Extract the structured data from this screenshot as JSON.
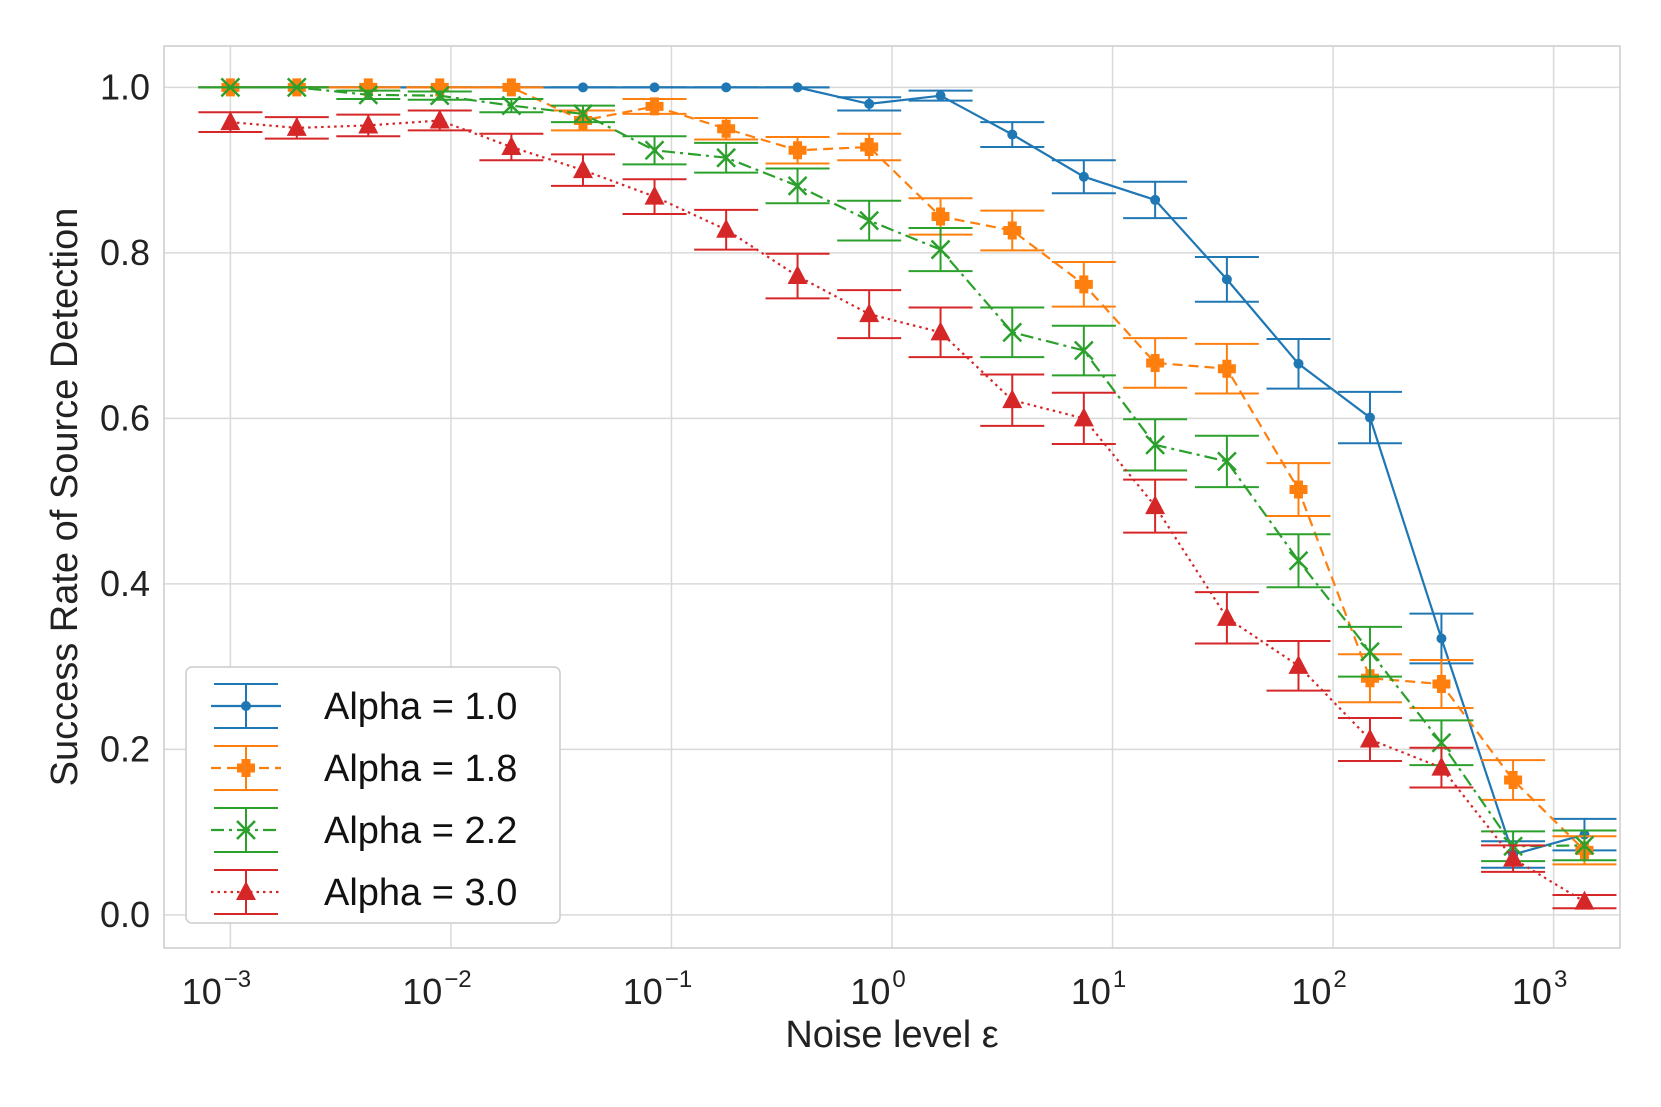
{
  "chart_data": {
    "type": "line",
    "title": "",
    "xlabel": "Noise level ε",
    "ylabel": "Success Rate of Source Detection",
    "xscale": "log",
    "xlim": [
      0.0005,
      2000
    ],
    "ylim": [
      -0.04,
      1.05
    ],
    "grid": true,
    "legend_position": "lower-left",
    "x_ticks": [
      {
        "value": 0.001,
        "base": "10",
        "exp": "−3"
      },
      {
        "value": 0.01,
        "base": "10",
        "exp": "−2"
      },
      {
        "value": 0.1,
        "base": "10",
        "exp": "−1"
      },
      {
        "value": 1,
        "base": "10",
        "exp": "0"
      },
      {
        "value": 10,
        "base": "10",
        "exp": "1"
      },
      {
        "value": 100,
        "base": "10",
        "exp": "2"
      },
      {
        "value": 1000,
        "base": "10",
        "exp": "3"
      }
    ],
    "y_ticks": [
      {
        "value": 0.0,
        "label": "0.0"
      },
      {
        "value": 0.2,
        "label": "0.2"
      },
      {
        "value": 0.4,
        "label": "0.4"
      },
      {
        "value": 0.6,
        "label": "0.6"
      },
      {
        "value": 0.8,
        "label": "0.8"
      },
      {
        "value": 1.0,
        "label": "1.0"
      }
    ],
    "x": [
      0.001,
      0.002,
      0.00422,
      0.0089,
      0.0188,
      0.0397,
      0.0838,
      0.177,
      0.373,
      0.788,
      1.66,
      3.51,
      7.41,
      15.6,
      33.0,
      69.7,
      147,
      310,
      655,
      1380
    ],
    "series": [
      {
        "name": "Alpha = 1.0",
        "color": "#1f77b4",
        "marker": "circle",
        "linestyle": "solid",
        "values": [
          1.0,
          1.0,
          1.0,
          1.0,
          1.0,
          1.0,
          1.0,
          1.0,
          1.0,
          0.98,
          0.99,
          0.943,
          0.892,
          0.864,
          0.768,
          0.666,
          0.601,
          0.334,
          0.073,
          0.097
        ],
        "errors": [
          0,
          0,
          0,
          0,
          0,
          0,
          0,
          0,
          0,
          0.008,
          0.006,
          0.015,
          0.02,
          0.022,
          0.027,
          0.03,
          0.031,
          0.03,
          0.016,
          0.019
        ]
      },
      {
        "name": "Alpha = 1.8",
        "color": "#ff7f0e",
        "marker": "plus",
        "linestyle": "dashed",
        "values": [
          1.0,
          1.0,
          1.0,
          1.0,
          1.0,
          0.96,
          0.977,
          0.95,
          0.924,
          0.928,
          0.844,
          0.827,
          0.762,
          0.667,
          0.66,
          0.514,
          0.286,
          0.279,
          0.163,
          0.078
        ],
        "errors": [
          0,
          0,
          0,
          0,
          0,
          0.012,
          0.009,
          0.013,
          0.016,
          0.016,
          0.022,
          0.024,
          0.027,
          0.03,
          0.03,
          0.032,
          0.029,
          0.029,
          0.024,
          0.017
        ]
      },
      {
        "name": "Alpha = 2.2",
        "color": "#2ca02c",
        "marker": "x",
        "linestyle": "dashdot",
        "values": [
          1.0,
          1.0,
          0.991,
          0.99,
          0.978,
          0.968,
          0.924,
          0.915,
          0.881,
          0.839,
          0.804,
          0.704,
          0.682,
          0.568,
          0.548,
          0.428,
          0.318,
          0.208,
          0.083,
          0.084
        ],
        "errors": [
          0,
          0,
          0.005,
          0.005,
          0.008,
          0.01,
          0.017,
          0.018,
          0.021,
          0.024,
          0.026,
          0.03,
          0.03,
          0.031,
          0.031,
          0.032,
          0.03,
          0.027,
          0.018,
          0.018
        ]
      },
      {
        "name": "Alpha = 3.0",
        "color": "#d62728",
        "marker": "triangle",
        "linestyle": "dotted",
        "values": [
          0.958,
          0.951,
          0.954,
          0.96,
          0.928,
          0.9,
          0.868,
          0.828,
          0.772,
          0.726,
          0.704,
          0.622,
          0.6,
          0.494,
          0.359,
          0.301,
          0.212,
          0.178,
          0.068,
          0.016
        ],
        "errors": [
          0.012,
          0.013,
          0.013,
          0.012,
          0.016,
          0.019,
          0.021,
          0.024,
          0.027,
          0.029,
          0.03,
          0.031,
          0.031,
          0.032,
          0.031,
          0.03,
          0.026,
          0.024,
          0.016,
          0.008
        ]
      }
    ]
  }
}
